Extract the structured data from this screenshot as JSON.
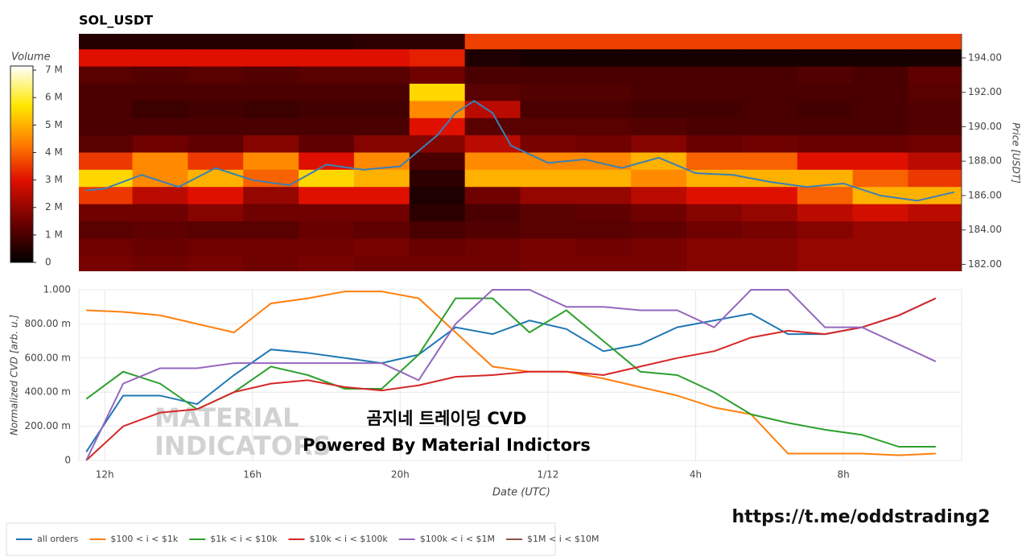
{
  "chart_data": [
    {
      "type": "heatmap",
      "title": "SOL_USDT",
      "x": [
        12,
        13.5,
        15,
        16.5,
        18,
        19.5,
        21,
        22.5,
        24,
        25.5,
        27,
        28.5,
        30,
        31.5,
        33,
        34.5
      ],
      "y": [
        195,
        194,
        193,
        192,
        191,
        190,
        189,
        188,
        187,
        186,
        185,
        184,
        183,
        182
      ],
      "z": [
        [
          0.5,
          0.5,
          0.5,
          0.5,
          0.5,
          0.6,
          0.6,
          3.6,
          3.6,
          3.6,
          3.6,
          3.6,
          3.6,
          3.6,
          3.6,
          3.6
        ],
        [
          3,
          3,
          3,
          3,
          3,
          3,
          3.2,
          0.4,
          0.3,
          0.3,
          0.3,
          0.3,
          0.3,
          0.3,
          0.3,
          0.3
        ],
        [
          1.2,
          1.1,
          1.2,
          1.1,
          1.2,
          1.2,
          1.5,
          1,
          1,
          1,
          1,
          1,
          1,
          1.1,
          1,
          1.3
        ],
        [
          1,
          1,
          1,
          1,
          1,
          1,
          5.5,
          1.2,
          1.1,
          1.1,
          1,
          1,
          1,
          1,
          1,
          1.2
        ],
        [
          1,
          0.8,
          0.9,
          0.8,
          0.9,
          0.9,
          4.5,
          2.5,
          1,
          1,
          0.9,
          0.9,
          1,
          0.9,
          1,
          1.1
        ],
        [
          1,
          1,
          1,
          1,
          1,
          1,
          3,
          1.2,
          1.2,
          1.2,
          1.1,
          1,
          1,
          1,
          1,
          1.1
        ],
        [
          1.2,
          1.5,
          1.3,
          1.8,
          1.3,
          1.8,
          1.8,
          2.5,
          1.6,
          1.5,
          1.8,
          1.4,
          1.5,
          1.4,
          1.4,
          1.5
        ],
        [
          3.5,
          4.5,
          3.5,
          4.5,
          3,
          4.5,
          1,
          4.5,
          4.5,
          4.5,
          5,
          4,
          4,
          3,
          3,
          2.5
        ],
        [
          5.5,
          4.5,
          5,
          4,
          5.5,
          5,
          0.6,
          5,
          5,
          5,
          4.5,
          5,
          5,
          5,
          4,
          3.5
        ],
        [
          3.5,
          2.5,
          3,
          2,
          3,
          3,
          0.4,
          1.5,
          2,
          2,
          2.5,
          3,
          3,
          4,
          5,
          5
        ],
        [
          1.5,
          1.5,
          1.8,
          1.5,
          1.5,
          1.5,
          0.6,
          1,
          1.2,
          1.3,
          1.5,
          1.8,
          2,
          2.5,
          2.8,
          2.5
        ],
        [
          1.2,
          1.3,
          1.2,
          1.2,
          1.4,
          1.3,
          1,
          1.1,
          1.2,
          1.2,
          1.3,
          1.5,
          1.6,
          1.8,
          2,
          2
        ],
        [
          1.5,
          1.4,
          1.5,
          1.5,
          1.5,
          1.6,
          1.4,
          1.5,
          1.6,
          1.5,
          1.6,
          1.8,
          1.8,
          2,
          2,
          2
        ],
        [
          1.6,
          1.5,
          1.6,
          1.5,
          1.6,
          1.5,
          1.5,
          1.5,
          1.6,
          1.6,
          1.6,
          1.8,
          1.8,
          2,
          2,
          2
        ]
      ],
      "xlim": [
        11.3,
        35.2
      ],
      "ylim": [
        181.6,
        195.4
      ],
      "yticks": [
        {
          "value": 182,
          "label": "182.00"
        },
        {
          "value": 184,
          "label": "184.00"
        },
        {
          "value": 186,
          "label": "186.00"
        },
        {
          "value": 188,
          "label": "188.00"
        },
        {
          "value": 190,
          "label": "190.00"
        },
        {
          "value": 192,
          "label": "192.00"
        },
        {
          "value": 194,
          "label": "194.00"
        }
      ],
      "y_label": "Price [USDT]",
      "colorbar": {
        "title": "Volume",
        "lim": [
          0,
          7.15
        ],
        "ticks": [
          0,
          {
            "value": 1,
            "label": "1 M"
          },
          {
            "value": 2,
            "label": "2 M"
          },
          {
            "value": 3,
            "label": "3 M"
          },
          {
            "value": 4,
            "label": "4 M"
          },
          {
            "value": 5,
            "label": "5 M"
          },
          {
            "value": 6,
            "label": "6 M"
          },
          {
            "value": 7,
            "label": "7 M"
          }
        ]
      },
      "price_line": {
        "color": "#3a80b5",
        "x": [
          11.5,
          12,
          13,
          14,
          15,
          16,
          17,
          18,
          19,
          20,
          21,
          21.5,
          22,
          22.5,
          23,
          24,
          25,
          26,
          27,
          28,
          29,
          30,
          31,
          32,
          33,
          34,
          35
        ],
        "values": [
          186.3,
          186.4,
          187.2,
          186.5,
          187.6,
          186.9,
          186.6,
          187.8,
          187.5,
          187.7,
          189.5,
          190.8,
          191.5,
          190.8,
          188.9,
          187.9,
          188.1,
          187.6,
          188.2,
          187.3,
          187.2,
          186.8,
          186.5,
          186.7,
          186.0,
          185.7,
          186.2
        ]
      }
    },
    {
      "type": "line",
      "x": [
        11.5,
        12.5,
        13.5,
        14.5,
        15.5,
        16.5,
        17.5,
        18.5,
        19.5,
        20.5,
        21.5,
        22.5,
        23.5,
        24.5,
        25.5,
        26.5,
        27.5,
        28.5,
        29.5,
        30.5,
        31.5,
        32.5,
        33.5,
        34.5
      ],
      "xlim": [
        11.3,
        35.2
      ],
      "xticks": [
        {
          "value": 12,
          "label": "12h"
        },
        {
          "value": 16,
          "label": "16h"
        },
        {
          "value": 20,
          "label": "20h"
        },
        {
          "value": 24,
          "label": "1/12"
        },
        {
          "value": 28,
          "label": "4h"
        },
        {
          "value": 32,
          "label": "8h"
        }
      ],
      "ylim": [
        0,
        1
      ],
      "yticks": [
        0,
        {
          "value": 0.2,
          "label": "200.00 m"
        },
        {
          "value": 0.4,
          "label": "400.00 m"
        },
        {
          "value": 0.6,
          "label": "600.00 m"
        },
        {
          "value": 0.8,
          "label": "800.00 m"
        },
        {
          "value": 1,
          "label": "1.000"
        }
      ],
      "x_label": "Date (UTC)",
      "y_label": "Normalized CVD [arb. u.]",
      "grid": true,
      "series": [
        {
          "name": "all orders",
          "color": "#1f77b4",
          "values": [
            0.05,
            0.38,
            0.38,
            0.33,
            0.5,
            0.65,
            0.63,
            0.6,
            0.57,
            0.62,
            0.78,
            0.74,
            0.82,
            0.77,
            0.64,
            0.68,
            0.78,
            0.82,
            0.86,
            0.74,
            0.74,
            0.78,
            0.85,
            0.95
          ]
        },
        {
          "name": "$100 < i < $1k",
          "color": "#ff7f0e",
          "values": [
            0.88,
            0.87,
            0.85,
            0.8,
            0.75,
            0.92,
            0.95,
            0.99,
            0.99,
            0.95,
            0.75,
            0.55,
            0.52,
            0.52,
            0.48,
            0.43,
            0.38,
            0.31,
            0.27,
            0.04,
            0.04,
            0.04,
            0.03,
            0.04
          ]
        },
        {
          "name": "$1k < i < $10k",
          "color": "#2ca02c",
          "values": [
            0.36,
            0.52,
            0.45,
            0.3,
            0.4,
            0.55,
            0.5,
            0.42,
            0.42,
            0.62,
            0.95,
            0.95,
            0.75,
            0.88,
            0.7,
            0.52,
            0.5,
            0.4,
            0.27,
            0.22,
            0.18,
            0.15,
            0.08,
            0.08
          ]
        },
        {
          "name": "$10k < i < $100k",
          "color": "#d62728",
          "values": [
            0,
            0.2,
            0.28,
            0.3,
            0.4,
            0.45,
            0.47,
            0.43,
            0.41,
            0.44,
            0.49,
            0.5,
            0.52,
            0.52,
            0.5,
            0.55,
            0.6,
            0.64,
            0.72,
            0.76,
            0.74,
            0.78,
            0.85,
            0.95
          ]
        },
        {
          "name": "$100k < i < $1M",
          "color": "#9467bd",
          "values": [
            0,
            0.45,
            0.54,
            0.54,
            0.57,
            0.57,
            0.57,
            0.57,
            0.57,
            0.47,
            0.8,
            1,
            1,
            0.9,
            0.9,
            0.88,
            0.88,
            0.78,
            1,
            1,
            0.78,
            0.78,
            0.68,
            0.58
          ]
        },
        {
          "name": "$1M < i < $10M",
          "color": "#8c564b",
          "values": [
            null,
            null,
            null,
            null,
            null,
            null,
            null,
            null,
            null,
            null,
            null,
            null,
            null,
            null,
            null,
            null,
            null,
            null,
            null,
            null,
            null,
            null,
            null,
            null
          ]
        }
      ],
      "annotations": [
        "곰지네 트레이딩 CVD",
        "Powered By Material Indictors"
      ],
      "watermark": [
        "MATERIAL",
        "INDICATORS"
      ]
    }
  ],
  "footer": {
    "link": "https://t.me/oddstrading2"
  }
}
